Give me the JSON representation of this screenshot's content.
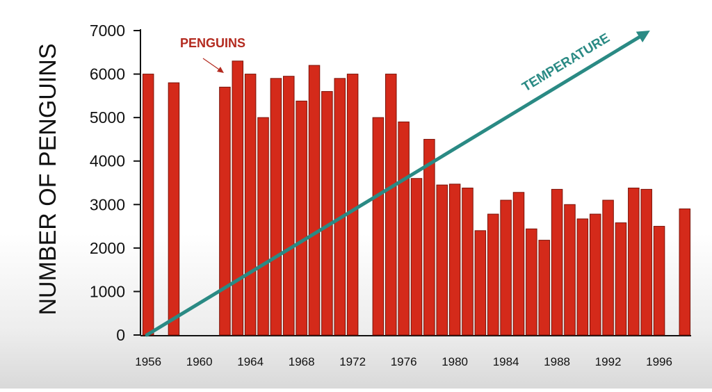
{
  "chart_data": {
    "type": "bar",
    "title": "",
    "xlabel": "",
    "ylabel": "NUMBER OF PENGUINS",
    "ylim": [
      0,
      7000
    ],
    "yticks": [
      0,
      1000,
      2000,
      3000,
      4000,
      5000,
      6000,
      7000
    ],
    "xlim": [
      1955.5,
      1998.5
    ],
    "xticks": [
      1956,
      1960,
      1964,
      1968,
      1972,
      1976,
      1980,
      1984,
      1988,
      1992,
      1996
    ],
    "grid": false,
    "bar_color": "#d42a1a",
    "bar_edge_color": "#7a1208",
    "series": [
      {
        "name": "PENGUINS",
        "points": [
          {
            "year": 1956,
            "value": 6000
          },
          {
            "year": 1958,
            "value": 5800
          },
          {
            "year": 1962,
            "value": 5700
          },
          {
            "year": 1963,
            "value": 6300
          },
          {
            "year": 1964,
            "value": 6000
          },
          {
            "year": 1965,
            "value": 5000
          },
          {
            "year": 1966,
            "value": 5900
          },
          {
            "year": 1967,
            "value": 5950
          },
          {
            "year": 1968,
            "value": 5380
          },
          {
            "year": 1969,
            "value": 6200
          },
          {
            "year": 1970,
            "value": 5600
          },
          {
            "year": 1971,
            "value": 5900
          },
          {
            "year": 1972,
            "value": 6000
          },
          {
            "year": 1974,
            "value": 5000
          },
          {
            "year": 1975,
            "value": 6000
          },
          {
            "year": 1976,
            "value": 4900
          },
          {
            "year": 1977,
            "value": 3600
          },
          {
            "year": 1978,
            "value": 4500
          },
          {
            "year": 1979,
            "value": 3450
          },
          {
            "year": 1980,
            "value": 3470
          },
          {
            "year": 1981,
            "value": 3380
          },
          {
            "year": 1982,
            "value": 2400
          },
          {
            "year": 1983,
            "value": 2780
          },
          {
            "year": 1984,
            "value": 3100
          },
          {
            "year": 1985,
            "value": 3280
          },
          {
            "year": 1986,
            "value": 2440
          },
          {
            "year": 1987,
            "value": 2180
          },
          {
            "year": 1988,
            "value": 3350
          },
          {
            "year": 1989,
            "value": 3000
          },
          {
            "year": 1990,
            "value": 2670
          },
          {
            "year": 1991,
            "value": 2780
          },
          {
            "year": 1992,
            "value": 3100
          },
          {
            "year": 1993,
            "value": 2580
          },
          {
            "year": 1994,
            "value": 3380
          },
          {
            "year": 1995,
            "value": 3350
          },
          {
            "year": 1996,
            "value": 2500
          },
          {
            "year": 1998,
            "value": 2900
          }
        ]
      }
    ],
    "annotations": {
      "penguins_label": "PENGUINS",
      "penguins_color": "#b32a1f",
      "temperature_label": "TEMPERATURE",
      "temperature_color": "#2a8a84",
      "temperature_trend": {
        "start": {
          "year": 1956,
          "value": 0
        },
        "end": {
          "year": 1998,
          "value": 7000
        }
      }
    }
  }
}
